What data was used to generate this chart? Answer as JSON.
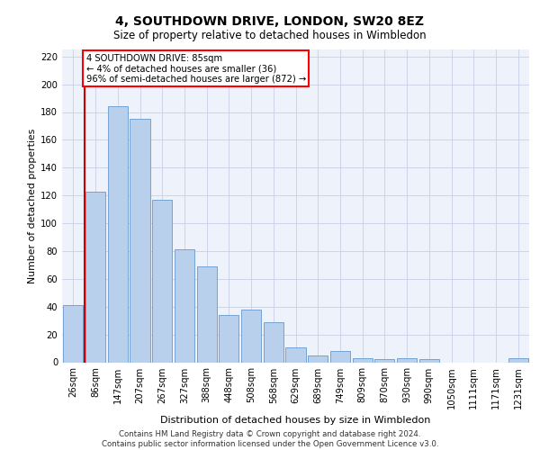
{
  "title": "4, SOUTHDOWN DRIVE, LONDON, SW20 8EZ",
  "subtitle": "Size of property relative to detached houses in Wimbledon",
  "xlabel": "Distribution of detached houses by size in Wimbledon",
  "ylabel": "Number of detached properties",
  "categories": [
    "26sqm",
    "86sqm",
    "147sqm",
    "207sqm",
    "267sqm",
    "327sqm",
    "388sqm",
    "448sqm",
    "508sqm",
    "568sqm",
    "629sqm",
    "689sqm",
    "749sqm",
    "809sqm",
    "870sqm",
    "930sqm",
    "990sqm",
    "1050sqm",
    "1111sqm",
    "1171sqm",
    "1231sqm"
  ],
  "bar_values": [
    41,
    123,
    184,
    175,
    117,
    81,
    69,
    34,
    38,
    29,
    11,
    5,
    8,
    3,
    2,
    3,
    2,
    0,
    0,
    0,
    3
  ],
  "bar_color": "#b8d0eb",
  "bar_edge_color": "#6699cc",
  "annotation_text": "4 SOUTHDOWN DRIVE: 85sqm\n← 4% of detached houses are smaller (36)\n96% of semi-detached houses are larger (872) →",
  "red_line_color": "#cc0000",
  "footer": "Contains HM Land Registry data © Crown copyright and database right 2024.\nContains public sector information licensed under the Open Government Licence v3.0.",
  "ylim": [
    0,
    225
  ],
  "yticks": [
    0,
    20,
    40,
    60,
    80,
    100,
    120,
    140,
    160,
    180,
    200,
    220
  ],
  "bg_color": "#eef2fb",
  "grid_color": "#c8d0e8"
}
